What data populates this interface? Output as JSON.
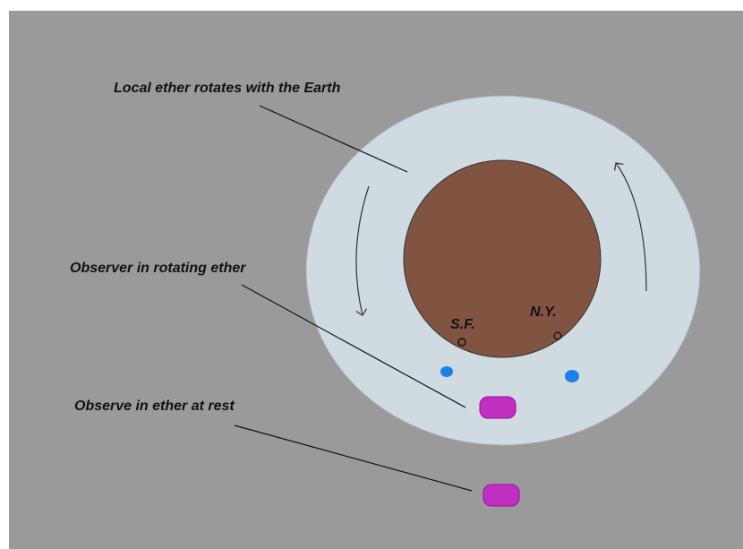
{
  "labels": {
    "rotating_ether": "Local ether rotates with the Earth",
    "observer_rotating": "Observer in rotating ether",
    "observer_rest": "Observe in ether at rest",
    "sf": "S.F.",
    "ny": "N.Y."
  }
}
